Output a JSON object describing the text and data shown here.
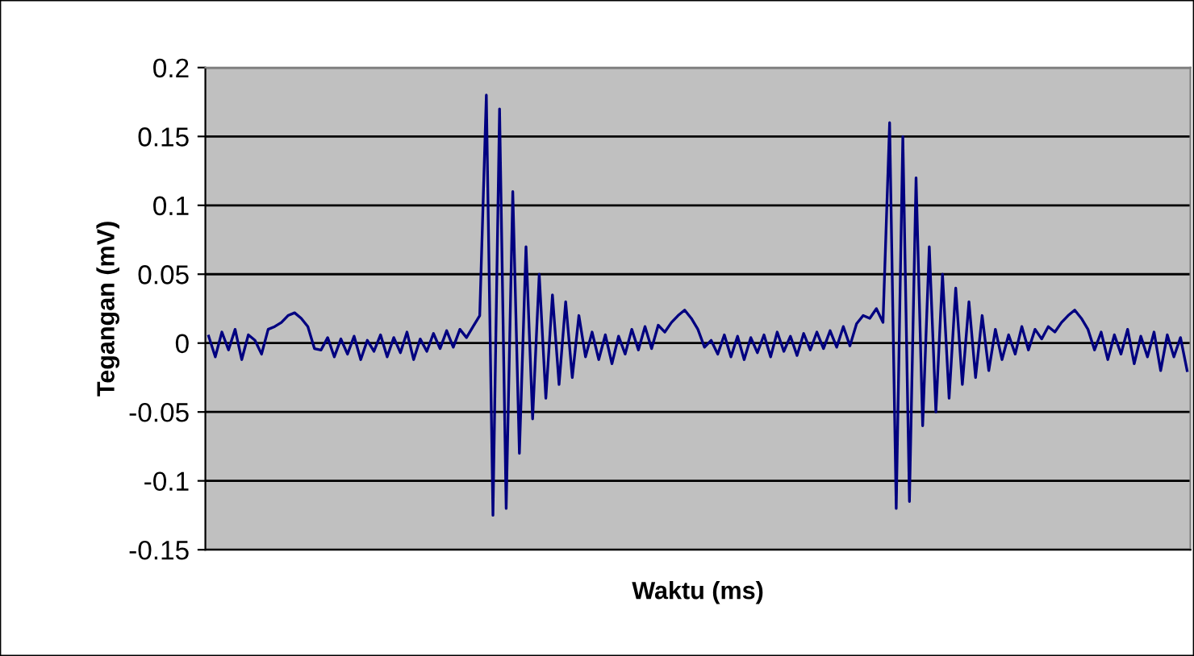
{
  "chart_data": {
    "type": "line",
    "xlabel": "Waktu (ms)",
    "ylabel": "Tegangan (mV)",
    "categories": [
      null,
      null,
      null,
      null,
      null,
      null,
      null,
      null,
      null,
      null,
      null,
      null,
      null,
      null,
      null,
      null,
      null,
      null,
      null,
      null,
      null,
      null,
      null,
      null,
      null,
      null,
      null,
      null,
      null,
      null,
      null,
      null,
      null,
      null,
      null,
      null,
      null,
      null,
      null,
      null,
      null,
      null,
      null,
      null,
      null,
      null,
      null,
      null,
      null,
      null,
      null,
      null,
      null,
      null,
      null,
      null,
      null,
      null,
      null,
      null,
      null,
      null,
      null,
      null,
      null,
      null,
      null,
      null,
      null,
      null,
      null,
      null,
      null,
      null,
      null,
      null,
      null,
      null,
      null,
      null,
      null,
      null,
      null,
      null,
      null,
      null,
      null,
      null,
      null,
      null,
      null,
      null,
      null,
      null,
      null,
      null,
      null,
      null,
      null,
      null,
      null,
      null,
      null,
      null,
      null,
      null,
      null,
      null,
      null,
      null,
      null,
      null,
      null,
      null,
      null,
      null,
      null,
      null,
      null,
      null,
      null,
      null,
      null,
      null,
      null,
      null,
      null,
      null,
      null,
      null,
      null,
      null,
      null,
      null,
      null,
      null,
      null,
      null,
      null,
      null,
      null,
      null,
      null,
      null,
      null,
      null,
      null,
      null,
      null
    ],
    "series": [
      {
        "color": "#000080",
        "values": [
          0.005,
          -0.01,
          0.008,
          -0.005,
          0.01,
          -0.012,
          0.006,
          0.002,
          -0.008,
          0.01,
          0.012,
          0.015,
          0.02,
          0.022,
          0.018,
          0.012,
          -0.004,
          -0.005,
          0.004,
          -0.01,
          0.003,
          -0.008,
          0.005,
          -0.012,
          0.002,
          -0.006,
          0.006,
          -0.01,
          0.004,
          -0.007,
          0.008,
          -0.012,
          0.003,
          -0.006,
          0.007,
          -0.004,
          0.009,
          -0.003,
          0.01,
          0.004,
          0.012,
          0.02,
          0.18,
          -0.125,
          0.17,
          -0.12,
          0.11,
          -0.08,
          0.07,
          -0.055,
          0.05,
          -0.04,
          0.035,
          -0.03,
          0.03,
          -0.025,
          0.02,
          -0.01,
          0.008,
          -0.012,
          0.006,
          -0.015,
          0.005,
          -0.008,
          0.01,
          -0.005,
          0.012,
          -0.004,
          0.013,
          0.008,
          0.015,
          0.02,
          0.024,
          0.018,
          0.01,
          -0.003,
          0.002,
          -0.008,
          0.006,
          -0.01,
          0.005,
          -0.012,
          0.004,
          -0.007,
          0.006,
          -0.01,
          0.008,
          -0.006,
          0.005,
          -0.009,
          0.007,
          -0.005,
          0.008,
          -0.004,
          0.009,
          -0.003,
          0.012,
          -0.002,
          0.014,
          0.02,
          0.018,
          0.025,
          0.015,
          0.16,
          -0.12,
          0.15,
          -0.115,
          0.12,
          -0.06,
          0.07,
          -0.05,
          0.05,
          -0.04,
          0.04,
          -0.03,
          0.03,
          -0.025,
          0.02,
          -0.02,
          0.01,
          -0.012,
          0.006,
          -0.008,
          0.012,
          -0.005,
          0.01,
          0.003,
          0.012,
          0.008,
          0.015,
          0.02,
          0.024,
          0.018,
          0.01,
          -0.005,
          0.008,
          -0.012,
          0.006,
          -0.008,
          0.01,
          -0.015,
          0.005,
          -0.01,
          0.008,
          -0.02,
          0.006,
          -0.01,
          0.004,
          -0.02
        ]
      }
    ],
    "ylim": [
      -0.15,
      0.2
    ],
    "yticks": [
      -0.15,
      -0.1,
      -0.05,
      0,
      0.05,
      0.1,
      0.15,
      0.2
    ],
    "grid": "y",
    "tick_labels": "y",
    "legend": false
  }
}
